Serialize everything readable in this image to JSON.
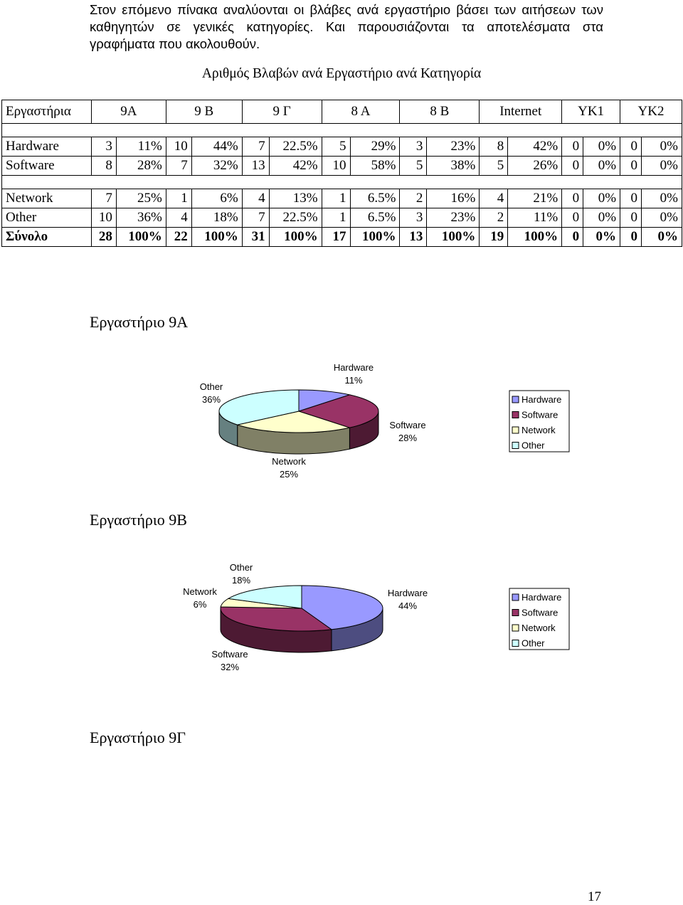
{
  "intro": {
    "line1": "Στον επόμενο πίνακα αναλύονται οι βλάβες ανά εργαστήριο βάσει των αιτήσεων των",
    "line2": "καθηγητών σε γενικές κατηγορίες. Και παρουσιάζονται τα αποτελέσματα στα",
    "line3": "γραφήματα που ακολουθούν."
  },
  "table": {
    "title": "Αριθμός Βλαβών ανά Εργαστήριο ανά Κατηγορία",
    "header": [
      "Εργαστήρια",
      "9Α",
      "9 Β",
      "9 Γ",
      "8 Α",
      "8 Β",
      "Internet",
      "ΥΚ1",
      "ΥΚ2"
    ],
    "rows": [
      {
        "label": "Hardware",
        "cells": [
          "3",
          "11%",
          "10",
          "44%",
          "7",
          "22.5%",
          "5",
          "29%",
          "3",
          "23%",
          "8",
          "42%",
          "0",
          "0%",
          "0",
          "0%"
        ]
      },
      {
        "label": "Software",
        "cells": [
          "8",
          "28%",
          "7",
          "32%",
          "13",
          "42%",
          "10",
          "58%",
          "5",
          "38%",
          "5",
          "26%",
          "0",
          "0%",
          "0",
          "0%"
        ]
      },
      {
        "label": "Network",
        "cells": [
          "7",
          "25%",
          "1",
          "6%",
          "4",
          "13%",
          "1",
          "6.5%",
          "2",
          "16%",
          "4",
          "21%",
          "0",
          "0%",
          "0",
          "0%"
        ]
      },
      {
        "label": "Other",
        "cells": [
          "10",
          "36%",
          "4",
          "18%",
          "7",
          "22.5%",
          "1",
          "6.5%",
          "3",
          "23%",
          "2",
          "11%",
          "0",
          "0%",
          "0",
          "0%"
        ]
      },
      {
        "label": "Σύνολο",
        "cells": [
          "28",
          "100%",
          "22",
          "100%",
          "31",
          "100%",
          "17",
          "100%",
          "13",
          "100%",
          "19",
          "100%",
          "0",
          "0%",
          "0",
          "0%"
        ]
      }
    ]
  },
  "colors": {
    "Hardware": "#9999ff",
    "Software": "#993366",
    "Network": "#ffffcc",
    "Other": "#ccffff"
  },
  "headings": {
    "lab9a": "Εργαστήριο 9Α",
    "lab9b": "Εργαστήριο 9Β",
    "lab9g": "Εργαστήριο 9Γ"
  },
  "chart_data": [
    {
      "type": "pie",
      "title": "",
      "categories": [
        "Hardware",
        "Software",
        "Network",
        "Other"
      ],
      "values": [
        11,
        28,
        25,
        36
      ],
      "data_labels": [
        "11%",
        "28%",
        "25%",
        "36%"
      ],
      "legend": [
        "Hardware",
        "Software",
        "Network",
        "Other"
      ],
      "legend_position": "right",
      "style": "3d"
    },
    {
      "type": "pie",
      "title": "",
      "categories": [
        "Hardware",
        "Software",
        "Network",
        "Other"
      ],
      "values": [
        44,
        32,
        6,
        18
      ],
      "data_labels": [
        "44%",
        "32%",
        "6%",
        "18%"
      ],
      "legend": [
        "Hardware",
        "Software",
        "Network",
        "Other"
      ],
      "legend_position": "right",
      "style": "3d"
    }
  ],
  "page_number": "17"
}
